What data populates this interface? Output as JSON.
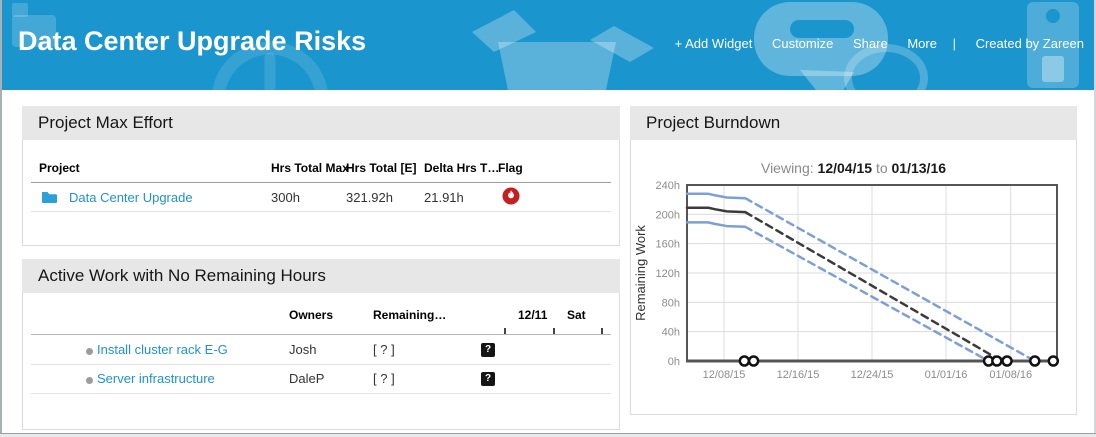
{
  "header": {
    "title": "Data Center Upgrade Risks",
    "nav": {
      "add_widget": "+ Add Widget",
      "customize": "Customize",
      "share": "Share",
      "more": "More",
      "divider": "|",
      "created_by": "Created by Zareen"
    }
  },
  "colors": {
    "header_blue": "#1b95cd",
    "link_blue": "#2191cf",
    "flag_red": "#c51f1f",
    "chart_blue": "#7C9FD6",
    "chart_black": "#3b3b3b"
  },
  "max_effort": {
    "title": "Project Max Effort",
    "columns": [
      "Project",
      "Hrs Total Max",
      "Hrs Total [E]",
      "Delta Hrs T…",
      "Flag"
    ],
    "rows": [
      {
        "project": "Data Center Upgrade",
        "hrs_total_max": "300h",
        "hrs_total_e": "321.92h",
        "delta_hrs": "21.91h",
        "flag": "risk-flame"
      }
    ]
  },
  "active_work": {
    "title": "Active Work with No Remaining Hours",
    "columns": {
      "owners": "Owners",
      "remaining": "Remaining…",
      "day1": "12/11",
      "day2": "Sat"
    },
    "rows": [
      {
        "name": "Install cluster rack E-G",
        "owner": "Josh",
        "remaining": "[ ? ]",
        "badge": "?"
      },
      {
        "name": "Server infrastructure",
        "owner": "DaleP",
        "remaining": "[ ? ]",
        "badge": "?"
      }
    ]
  },
  "burndown": {
    "title": "Project Burndown",
    "viewing_label": "Viewing:",
    "from_date": "12/04/15",
    "to_label": "to",
    "to_date": "01/13/16"
  },
  "chart_data": {
    "type": "line",
    "title": "Project Burndown",
    "subtitle": "Viewing: 12/04/15 to 01/13/16",
    "xlabel": "",
    "ylabel": "Remaining Work",
    "x_unit": "days since 12/04/15",
    "xlim": [
      0,
      40
    ],
    "ylim": [
      0,
      240
    ],
    "grid": true,
    "legend": "none",
    "y_ticks": [
      {
        "v": 0,
        "label": "0h"
      },
      {
        "v": 40,
        "label": "40h"
      },
      {
        "v": 80,
        "label": "80h"
      },
      {
        "v": 120,
        "label": "120h"
      },
      {
        "v": 160,
        "label": "160h"
      },
      {
        "v": 200,
        "label": "200h"
      },
      {
        "v": 240,
        "label": "240h"
      }
    ],
    "x_ticks": [
      {
        "day": 4,
        "label": "12/08/15"
      },
      {
        "day": 12,
        "label": "12/16/15"
      },
      {
        "day": 20,
        "label": "12/24/15"
      },
      {
        "day": 28,
        "label": "01/01/16"
      },
      {
        "day": 35,
        "label": "01/08/16"
      }
    ],
    "series": [
      {
        "name": "max-remaining-actual",
        "style": "solid",
        "color": "#7C9FD6",
        "points": [
          [
            0,
            228
          ],
          [
            2.3,
            228
          ],
          [
            3,
            226
          ],
          [
            4.3,
            223
          ],
          [
            6.3,
            222
          ]
        ]
      },
      {
        "name": "expected-remaining-actual",
        "style": "solid",
        "color": "#3b3b3b",
        "points": [
          [
            0,
            209
          ],
          [
            2.3,
            209
          ],
          [
            3,
            207
          ],
          [
            4.3,
            204
          ],
          [
            6.3,
            203
          ]
        ]
      },
      {
        "name": "min-remaining-actual",
        "style": "solid",
        "color": "#7C9FD6",
        "points": [
          [
            0,
            189
          ],
          [
            2.3,
            189
          ],
          [
            3,
            187
          ],
          [
            4.3,
            184
          ],
          [
            6.3,
            183
          ]
        ]
      },
      {
        "name": "max-remaining-projected",
        "style": "dashed",
        "color": "#7C9FD6",
        "points": [
          [
            6.3,
            222
          ],
          [
            37.6,
            0
          ]
        ]
      },
      {
        "name": "expected-remaining-projected",
        "style": "dashed",
        "color": "#3b3b3b",
        "points": [
          [
            6.3,
            203
          ],
          [
            34,
            0
          ]
        ]
      },
      {
        "name": "min-remaining-projected",
        "style": "dashed",
        "color": "#7C9FD6",
        "points": [
          [
            6.3,
            183
          ],
          [
            32.6,
            0
          ]
        ]
      }
    ],
    "zero_markers_days": [
      6.2,
      7.2,
      32.6,
      33.5,
      34.6,
      37.6,
      39.6
    ]
  }
}
